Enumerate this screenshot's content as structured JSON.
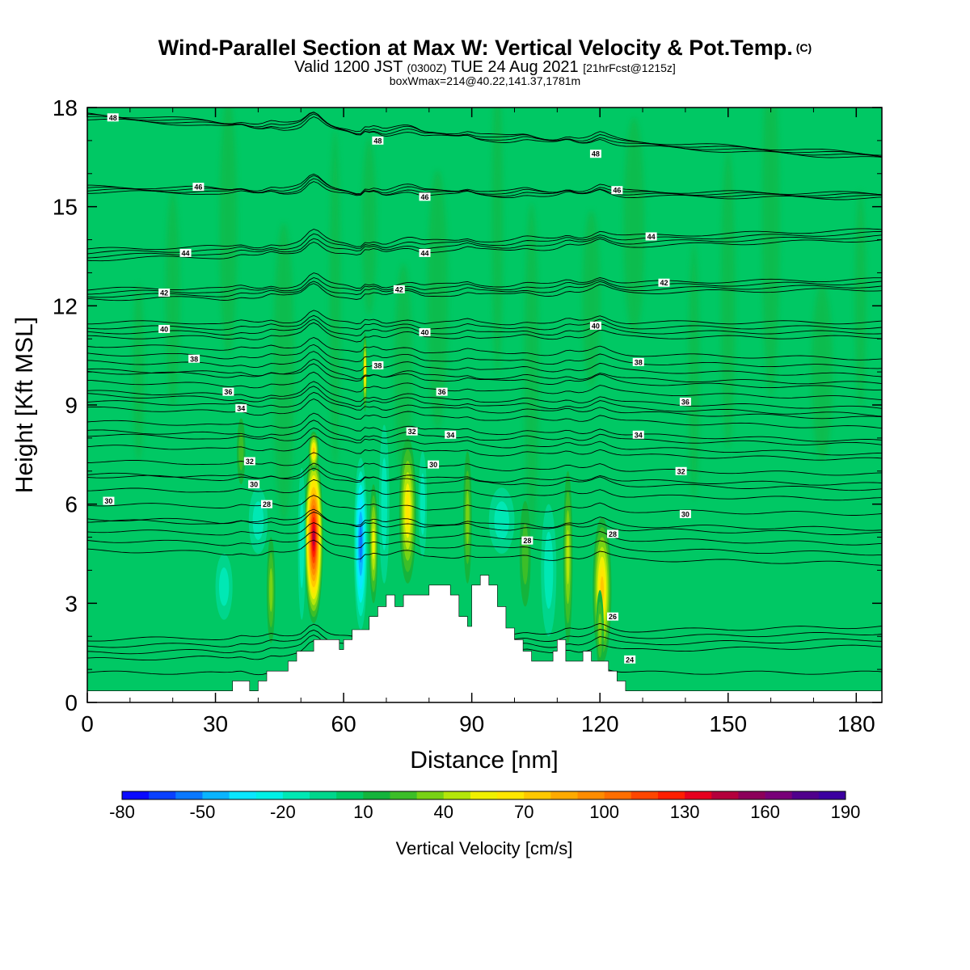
{
  "header": {
    "title": "Wind-Parallel Section at Max W: Vertical Velocity & Pot.Temp.",
    "copyright": "(C)",
    "subtitle_main": "Valid 1200 JST",
    "subtitle_utc": "(0300Z)",
    "subtitle_date": "TUE 24 Aug 2021",
    "subtitle_fcst": "[21hrFcst@1215z]",
    "subtitle2": "boxWmax=214@40.22,141.37,1781m"
  },
  "chart_data": {
    "type": "heatmap",
    "title": "Wind-Parallel Section at Max W: Vertical Velocity & Pot.Temp.",
    "xlabel": "Distance [nm]",
    "ylabel": "Height [Kft MSL]",
    "xlim": [
      0,
      186
    ],
    "ylim": [
      0,
      18
    ],
    "xticks": [
      0,
      30,
      60,
      90,
      120,
      150,
      180
    ],
    "yticks": [
      0,
      3,
      6,
      9,
      12,
      15,
      18
    ],
    "background_value_cms": 5,
    "colorbar": {
      "title": "Vertical Velocity [cm/s]",
      "tick_labels": [
        "-80",
        "-50",
        "-20",
        "10",
        "40",
        "70",
        "100",
        "130",
        "160",
        "190"
      ],
      "levels": [
        -80,
        -70,
        -60,
        -50,
        -40,
        -30,
        -20,
        -10,
        0,
        10,
        20,
        30,
        40,
        50,
        60,
        70,
        80,
        90,
        100,
        110,
        120,
        130,
        140,
        150,
        160,
        170,
        180,
        190
      ],
      "colors": [
        "#0a0aff",
        "#0a40ff",
        "#0a78ff",
        "#0ab4ff",
        "#0ae6ff",
        "#00f0e6",
        "#00e8b4",
        "#00d68c",
        "#00c864",
        "#14b43c",
        "#3cbe28",
        "#78d214",
        "#b4e60a",
        "#f0f000",
        "#ffe600",
        "#ffc800",
        "#ffaa00",
        "#ff8c00",
        "#ff6e00",
        "#ff4600",
        "#ff1e00",
        "#e6001e",
        "#b4003c",
        "#8c005a",
        "#780078",
        "#50008c",
        "#3c00a0"
      ]
    },
    "terrain": [
      {
        "x": 0,
        "h": 0.35
      },
      {
        "x": 34,
        "h": 0.35
      },
      {
        "x": 34,
        "h": 0.65
      },
      {
        "x": 38,
        "h": 0.65
      },
      {
        "x": 38,
        "h": 0.35
      },
      {
        "x": 40,
        "h": 0.35
      },
      {
        "x": 40,
        "h": 0.65
      },
      {
        "x": 42,
        "h": 0.65
      },
      {
        "x": 42,
        "h": 0.95
      },
      {
        "x": 47,
        "h": 0.95
      },
      {
        "x": 47,
        "h": 1.25
      },
      {
        "x": 49,
        "h": 1.25
      },
      {
        "x": 49,
        "h": 1.55
      },
      {
        "x": 53,
        "h": 1.55
      },
      {
        "x": 53,
        "h": 1.9
      },
      {
        "x": 59,
        "h": 1.9
      },
      {
        "x": 59,
        "h": 1.6
      },
      {
        "x": 60,
        "h": 1.6
      },
      {
        "x": 60,
        "h": 1.9
      },
      {
        "x": 62,
        "h": 1.9
      },
      {
        "x": 62,
        "h": 2.2
      },
      {
        "x": 66,
        "h": 2.2
      },
      {
        "x": 66,
        "h": 2.6
      },
      {
        "x": 68,
        "h": 2.6
      },
      {
        "x": 68,
        "h": 2.9
      },
      {
        "x": 70,
        "h": 2.9
      },
      {
        "x": 70,
        "h": 3.25
      },
      {
        "x": 72,
        "h": 3.25
      },
      {
        "x": 72,
        "h": 2.9
      },
      {
        "x": 74,
        "h": 2.9
      },
      {
        "x": 74,
        "h": 3.25
      },
      {
        "x": 80,
        "h": 3.25
      },
      {
        "x": 80,
        "h": 3.55
      },
      {
        "x": 85,
        "h": 3.55
      },
      {
        "x": 85,
        "h": 3.25
      },
      {
        "x": 87,
        "h": 3.25
      },
      {
        "x": 87,
        "h": 2.6
      },
      {
        "x": 89,
        "h": 2.6
      },
      {
        "x": 89,
        "h": 2.3
      },
      {
        "x": 90,
        "h": 2.3
      },
      {
        "x": 90,
        "h": 3.55
      },
      {
        "x": 92,
        "h": 3.55
      },
      {
        "x": 92,
        "h": 3.85
      },
      {
        "x": 94,
        "h": 3.85
      },
      {
        "x": 94,
        "h": 3.55
      },
      {
        "x": 96,
        "h": 3.55
      },
      {
        "x": 96,
        "h": 2.9
      },
      {
        "x": 98,
        "h": 2.9
      },
      {
        "x": 98,
        "h": 2.25
      },
      {
        "x": 100,
        "h": 2.25
      },
      {
        "x": 100,
        "h": 1.9
      },
      {
        "x": 102,
        "h": 1.9
      },
      {
        "x": 102,
        "h": 1.55
      },
      {
        "x": 104,
        "h": 1.55
      },
      {
        "x": 104,
        "h": 1.25
      },
      {
        "x": 109,
        "h": 1.25
      },
      {
        "x": 109,
        "h": 1.55
      },
      {
        "x": 110,
        "h": 1.55
      },
      {
        "x": 110,
        "h": 1.9
      },
      {
        "x": 112,
        "h": 1.9
      },
      {
        "x": 112,
        "h": 1.25
      },
      {
        "x": 116,
        "h": 1.25
      },
      {
        "x": 116,
        "h": 1.55
      },
      {
        "x": 118,
        "h": 1.55
      },
      {
        "x": 118,
        "h": 1.25
      },
      {
        "x": 122,
        "h": 1.25
      },
      {
        "x": 122,
        "h": 0.95
      },
      {
        "x": 124,
        "h": 0.95
      },
      {
        "x": 124,
        "h": 0.65
      },
      {
        "x": 126,
        "h": 0.65
      },
      {
        "x": 126,
        "h": 0.35
      },
      {
        "x": 186,
        "h": 0.35
      }
    ],
    "cells": [
      {
        "x": 53,
        "y": 5.0,
        "w": 2.2,
        "h": 2.6,
        "v": 150
      },
      {
        "x": 53,
        "y": 7.6,
        "w": 1.2,
        "h": 0.6,
        "v": 75
      },
      {
        "x": 50.2,
        "y": 4.8,
        "w": 0.9,
        "h": 2.3,
        "v": -20
      },
      {
        "x": 64,
        "y": 4.8,
        "w": 1.6,
        "h": 2.6,
        "v": -60
      },
      {
        "x": 65,
        "y": 10.0,
        "w": 0.5,
        "h": 1.2,
        "v": 65
      },
      {
        "x": 67,
        "y": 4.8,
        "w": 1.0,
        "h": 1.8,
        "v": 55
      },
      {
        "x": 69.5,
        "y": 6.0,
        "w": 1.2,
        "h": 2.4,
        "v": -20
      },
      {
        "x": 75,
        "y": 5.8,
        "w": 2.0,
        "h": 2.2,
        "v": 65
      },
      {
        "x": 78.5,
        "y": 6.0,
        "w": 1.0,
        "h": 1.6,
        "v": -20
      },
      {
        "x": 89,
        "y": 5.6,
        "w": 1.0,
        "h": 2.0,
        "v": 40
      },
      {
        "x": 97,
        "y": 5.5,
        "w": 3.0,
        "h": 1.0,
        "v": -20
      },
      {
        "x": 102.5,
        "y": 4.5,
        "w": 1.3,
        "h": 1.6,
        "v": 30
      },
      {
        "x": 108,
        "y": 4.0,
        "w": 1.8,
        "h": 2.0,
        "v": -20
      },
      {
        "x": 112.5,
        "y": 4.4,
        "w": 1.1,
        "h": 2.6,
        "v": 45
      },
      {
        "x": 120.5,
        "y": 3.4,
        "w": 2.2,
        "h": 2.2,
        "v": 75
      },
      {
        "x": 43,
        "y": 3.4,
        "w": 1.0,
        "h": 1.6,
        "v": 40
      },
      {
        "x": 40,
        "y": 5.5,
        "w": 2.2,
        "h": 1.0,
        "v": -20
      },
      {
        "x": 32,
        "y": 3.5,
        "w": 2.0,
        "h": 1.0,
        "v": -20
      },
      {
        "x": 36,
        "y": 7.6,
        "w": 1.0,
        "h": 1.0,
        "v": 25
      },
      {
        "x": 120,
        "y": 2.2,
        "w": 0.9,
        "h": 1.2,
        "v": 40
      }
    ],
    "theta_contours": [
      {
        "label": "24",
        "y0": 0.9,
        "y1": 0.9,
        "dy": 0.0,
        "labels": [
          {
            "x": 127,
            "y": 1.3
          }
        ]
      },
      {
        "label": "26",
        "y0": 1.5,
        "y1": 1.9,
        "dy": 0.4,
        "labels": [
          {
            "x": 123,
            "y": 2.6
          }
        ]
      },
      {
        "label": "28",
        "y0": 4.9,
        "y1": 4.5,
        "dy": 0.6,
        "labels": [
          {
            "x": 42,
            "y": 6.0
          },
          {
            "x": 103,
            "y": 4.9
          },
          {
            "x": 123,
            "y": 5.1
          }
        ]
      },
      {
        "label": "30",
        "y0": 6.0,
        "y1": 5.7,
        "dy": 0.9,
        "labels": [
          {
            "x": 5,
            "y": 6.1
          },
          {
            "x": 39,
            "y": 6.6
          },
          {
            "x": 81,
            "y": 7.2
          },
          {
            "x": 140,
            "y": 5.7
          }
        ]
      },
      {
        "label": "32",
        "y0": 7.3,
        "y1": 6.9,
        "dy": 0.9,
        "labels": [
          {
            "x": 38,
            "y": 7.3
          },
          {
            "x": 76,
            "y": 8.2
          },
          {
            "x": 139,
            "y": 7.0
          }
        ]
      },
      {
        "label": "34",
        "y0": 8.5,
        "y1": 7.9,
        "dy": 0.8,
        "labels": [
          {
            "x": 36,
            "y": 8.9
          },
          {
            "x": 85,
            "y": 8.1
          },
          {
            "x": 129,
            "y": 8.1
          }
        ]
      },
      {
        "label": "36",
        "y0": 9.4,
        "y1": 8.9,
        "dy": 0.6,
        "labels": [
          {
            "x": 33,
            "y": 9.4
          },
          {
            "x": 83,
            "y": 9.4
          },
          {
            "x": 140,
            "y": 9.1
          }
        ]
      },
      {
        "label": "38",
        "y0": 10.3,
        "y1": 9.9,
        "dy": 0.5,
        "labels": [
          {
            "x": 25,
            "y": 10.4
          },
          {
            "x": 68,
            "y": 10.2
          },
          {
            "x": 129,
            "y": 10.3
          }
        ]
      },
      {
        "label": "40",
        "y0": 11.2,
        "y1": 11.2,
        "dy": 0.3,
        "labels": [
          {
            "x": 18,
            "y": 11.3
          },
          {
            "x": 79,
            "y": 11.2
          },
          {
            "x": 119,
            "y": 11.4
          }
        ]
      },
      {
        "label": "42",
        "y0": 12.3,
        "y1": 12.6,
        "dy": 0.2,
        "labels": [
          {
            "x": 18,
            "y": 12.4
          },
          {
            "x": 73,
            "y": 12.5
          },
          {
            "x": 135,
            "y": 12.7
          }
        ]
      },
      {
        "label": "44",
        "y0": 13.5,
        "y1": 14.1,
        "dy": 0.2,
        "labels": [
          {
            "x": 23,
            "y": 13.6
          },
          {
            "x": 79,
            "y": 13.6
          },
          {
            "x": 132,
            "y": 14.1
          }
        ]
      },
      {
        "label": "46",
        "y0": 15.5,
        "y1": 15.3,
        "dy": 0.1,
        "labels": [
          {
            "x": 26,
            "y": 15.6
          },
          {
            "x": 79,
            "y": 15.3
          },
          {
            "x": 124,
            "y": 15.5
          }
        ]
      },
      {
        "label": "48",
        "y0": 17.7,
        "y1": 16.5,
        "dy": 0.1,
        "labels": [
          {
            "x": 6,
            "y": 17.7
          },
          {
            "x": 68,
            "y": 17.0
          },
          {
            "x": 119,
            "y": 16.6
          }
        ]
      }
    ]
  }
}
